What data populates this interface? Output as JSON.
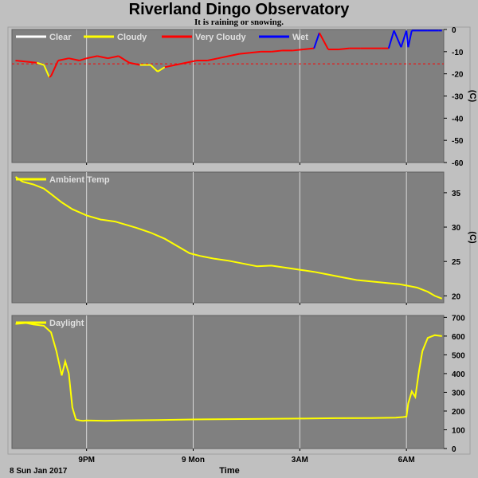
{
  "title": "Riverland Dingo Observatory",
  "subtitle": "It is raining or snowing.",
  "colors": {
    "background": "#c0c0c0",
    "panel": "#808080",
    "grid": "#d8d8d8",
    "clear": "#ffffff",
    "cloudy": "#ffff00",
    "very_cloudy": "#ff0000",
    "wet": "#0000ff",
    "threshold": "#ff0000"
  },
  "x_axis": {
    "label": "Time",
    "start_label": "8 Sun Jan 2017",
    "ticks": [
      {
        "hour": 21,
        "label": "9PM"
      },
      {
        "hour": 24,
        "label": "9 Mon"
      },
      {
        "hour": 27,
        "label": "3AM"
      },
      {
        "hour": 30,
        "label": "6AM"
      }
    ],
    "range_hours": [
      18.9,
      31.05
    ]
  },
  "chart_data": [
    {
      "type": "line",
      "name": "sky",
      "legend": [
        "Clear",
        "Cloudy",
        "Very Cloudy",
        "Wet"
      ],
      "ylabel": "(C)",
      "ylim": [
        -60,
        0
      ],
      "yticks": [
        0,
        -10,
        -20,
        -30,
        -40,
        -50,
        -60
      ],
      "threshold": -15.5,
      "x": [
        19.0,
        19.3,
        19.6,
        19.8,
        19.95,
        20.0,
        20.2,
        20.5,
        20.8,
        21.0,
        21.3,
        21.6,
        21.9,
        22.2,
        22.5,
        22.8,
        23.0,
        23.2,
        23.5,
        23.8,
        24.1,
        24.4,
        24.7,
        25.0,
        25.3,
        25.6,
        25.9,
        26.2,
        26.5,
        26.8,
        27.1,
        27.4,
        27.55,
        27.8,
        28.1,
        28.4,
        28.7,
        29.0,
        29.3,
        29.5,
        29.65,
        29.85,
        30.0,
        30.05,
        30.15,
        30.3,
        30.6,
        30.9,
        31.0
      ],
      "y": [
        -14,
        -14.5,
        -15,
        -16,
        -21.5,
        -21,
        -14,
        -13,
        -14,
        -13,
        -12,
        -13,
        -12,
        -15,
        -16,
        -16,
        -19,
        -17,
        -16,
        -15,
        -14,
        -14,
        -13,
        -12,
        -11,
        -10.5,
        -10,
        -10,
        -9.5,
        -9.5,
        -9,
        -8.5,
        -1.5,
        -9,
        -9,
        -8.5,
        -8.5,
        -8.5,
        -8.5,
        -8.5,
        -0.5,
        -8,
        -0.5,
        -8,
        -0.5,
        -0.5,
        -0.5,
        -0.5,
        -0.5
      ],
      "condition": [
        "Very Cloudy",
        "Very Cloudy",
        "Very Cloudy",
        "Cloudy",
        "Cloudy",
        "Very Cloudy",
        "Very Cloudy",
        "Very Cloudy",
        "Very Cloudy",
        "Very Cloudy",
        "Very Cloudy",
        "Very Cloudy",
        "Very Cloudy",
        "Very Cloudy",
        "Very Cloudy",
        "Cloudy",
        "Cloudy",
        "Cloudy",
        "Very Cloudy",
        "Very Cloudy",
        "Very Cloudy",
        "Very Cloudy",
        "Very Cloudy",
        "Very Cloudy",
        "Very Cloudy",
        "Very Cloudy",
        "Very Cloudy",
        "Very Cloudy",
        "Very Cloudy",
        "Very Cloudy",
        "Very Cloudy",
        "Very Cloudy",
        "Wet",
        "Very Cloudy",
        "Very Cloudy",
        "Very Cloudy",
        "Very Cloudy",
        "Very Cloudy",
        "Very Cloudy",
        "Very Cloudy",
        "Wet",
        "Wet",
        "Wet",
        "Wet",
        "Wet",
        "Wet",
        "Wet",
        "Wet",
        "Wet"
      ]
    },
    {
      "type": "line",
      "name": "ambient",
      "legend": [
        "Ambient Temp"
      ],
      "ylabel": "(C)",
      "ylim": [
        19,
        38
      ],
      "yticks": [
        20,
        25,
        30,
        35
      ],
      "x": [
        19.0,
        19.2,
        19.5,
        19.8,
        20.0,
        20.3,
        20.6,
        21.0,
        21.4,
        21.8,
        22.0,
        22.4,
        22.8,
        23.2,
        23.6,
        23.9,
        24.2,
        24.6,
        25.0,
        25.4,
        25.8,
        26.2,
        26.6,
        27.0,
        27.4,
        27.8,
        28.2,
        28.6,
        29.0,
        29.4,
        29.8,
        30.0,
        30.3,
        30.6,
        30.8,
        31.0
      ],
      "y": [
        37.3,
        36.6,
        36.2,
        35.6,
        34.8,
        33.6,
        32.6,
        31.7,
        31.1,
        30.8,
        30.5,
        29.9,
        29.2,
        28.3,
        27.1,
        26.2,
        25.8,
        25.4,
        25.1,
        24.7,
        24.3,
        24.4,
        24.1,
        23.8,
        23.5,
        23.1,
        22.7,
        22.3,
        22.1,
        21.9,
        21.7,
        21.5,
        21.2,
        20.6,
        20.0,
        19.6
      ],
      "color": "#ffff00"
    },
    {
      "type": "line",
      "name": "daylight",
      "legend": [
        "Daylight"
      ],
      "ylim": [
        0,
        710
      ],
      "yticks": [
        0,
        100,
        200,
        300,
        400,
        500,
        600,
        700
      ],
      "x": [
        19.0,
        19.3,
        19.5,
        19.8,
        20.0,
        20.15,
        20.3,
        20.4,
        20.5,
        20.6,
        20.7,
        20.8,
        20.9,
        21.0,
        21.5,
        22.0,
        23.0,
        24.0,
        25.0,
        26.0,
        27.0,
        28.0,
        29.0,
        29.7,
        29.9,
        30.0,
        30.05,
        30.15,
        30.25,
        30.35,
        30.45,
        30.6,
        30.8,
        31.0
      ],
      "y": [
        665,
        670,
        662,
        655,
        620,
        520,
        390,
        465,
        400,
        220,
        155,
        150,
        148,
        150,
        148,
        150,
        152,
        155,
        157,
        158,
        160,
        162,
        163,
        165,
        168,
        170,
        240,
        305,
        275,
        410,
        520,
        590,
        605,
        600
      ],
      "color": "#ffff00"
    }
  ]
}
